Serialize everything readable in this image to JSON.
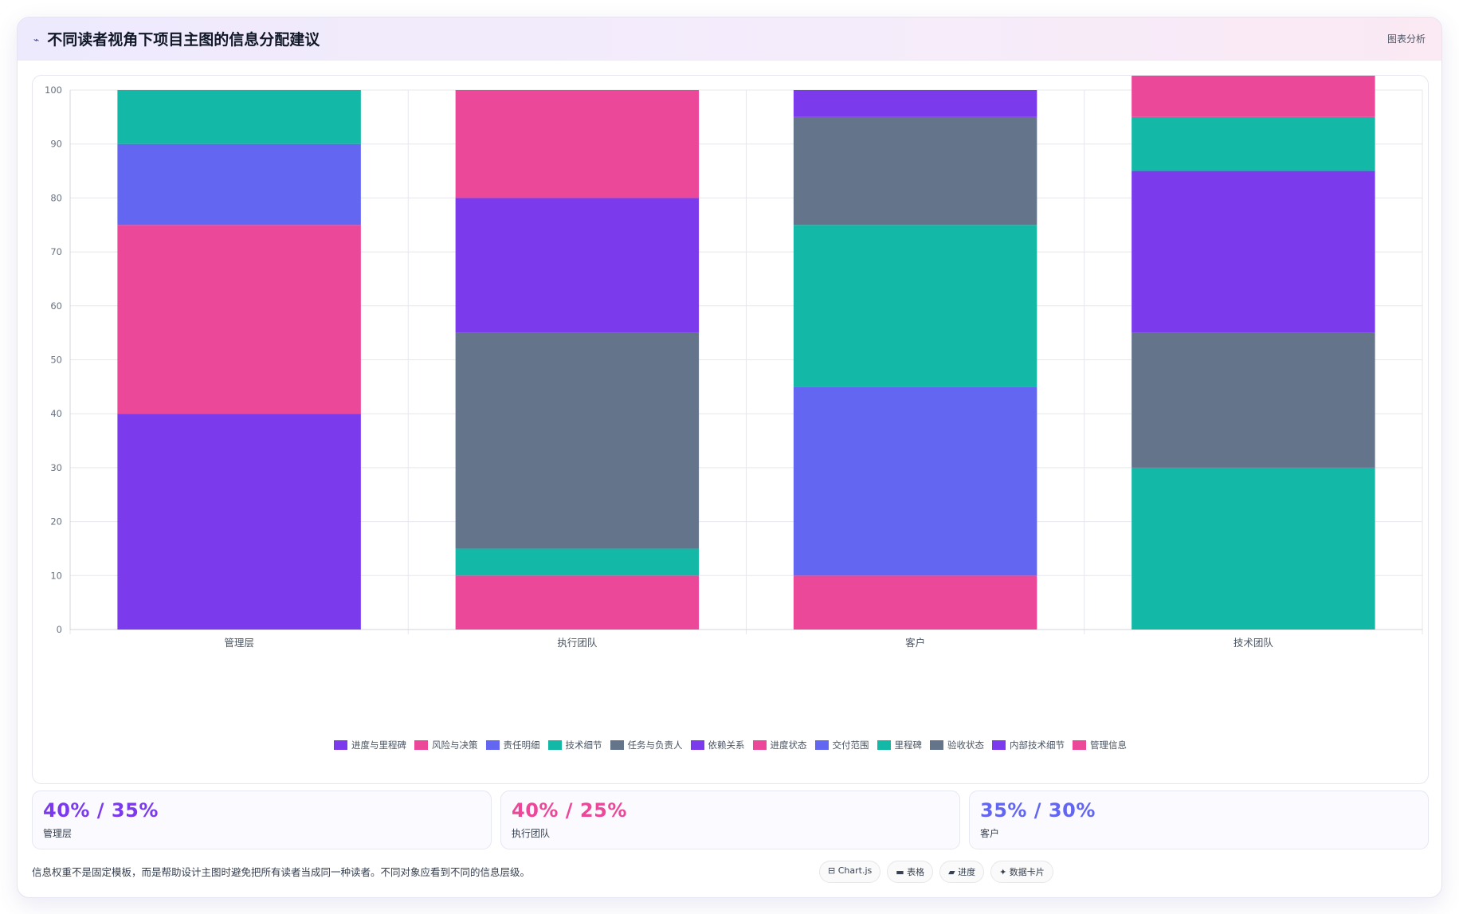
{
  "header": {
    "icon": "chart-line-icon",
    "title": "不同读者视角下项目主图的信息分配建议",
    "tag": "图表分析"
  },
  "colors": {
    "purple": "#7c3aed",
    "pink": "#ec4899",
    "indigo": "#6366f1",
    "teal": "#14b8a6",
    "slate": "#64748b"
  },
  "chart_data": {
    "type": "bar",
    "stacked": true,
    "categories": [
      "管理层",
      "执行团队",
      "客户",
      "技术团队"
    ],
    "ylim": [
      0,
      100
    ],
    "yticks": [
      0,
      10,
      20,
      30,
      40,
      50,
      60,
      70,
      80,
      90,
      100
    ],
    "grid": true,
    "legend_position": "bottom",
    "series": [
      {
        "name": "进度与里程碑",
        "color": "#7c3aed",
        "values": [
          40,
          0,
          0,
          0
        ]
      },
      {
        "name": "风险与决策",
        "color": "#ec4899",
        "values": [
          35,
          0,
          0,
          0
        ]
      },
      {
        "name": "责任明细",
        "color": "#6366f1",
        "values": [
          15,
          0,
          0,
          0
        ]
      },
      {
        "name": "技术细节",
        "color": "#14b8a6",
        "values": [
          10,
          0,
          0,
          0
        ]
      },
      {
        "name": "任务与负责人",
        "color": "#64748b",
        "values": [
          0,
          0,
          0,
          0
        ]
      },
      {
        "name": "依赖关系",
        "color": "#7c3aed",
        "values": [
          0,
          0,
          0,
          0
        ]
      },
      {
        "name": "进度状态",
        "color": "#ec4899",
        "values": [
          0,
          10,
          10,
          0
        ]
      },
      {
        "name": "交付范围",
        "color": "#6366f1",
        "values": [
          0,
          0,
          35,
          0
        ]
      },
      {
        "name": "里程碑",
        "color": "#14b8a6",
        "values": [
          0,
          5,
          30,
          30
        ]
      },
      {
        "name": "验收状态",
        "color": "#64748b",
        "values": [
          0,
          40,
          20,
          25
        ]
      },
      {
        "name": "内部技术细节",
        "color": "#7c3aed",
        "values": [
          0,
          25,
          5,
          30
        ]
      },
      {
        "name": "管理信息",
        "color": "#ec4899",
        "values": [
          0,
          20,
          0,
          15
        ]
      }
    ],
    "legend_extra": [
      {
        "name": "技术细节",
        "color": "#14b8a6",
        "values": [
          0,
          0,
          0,
          10
        ]
      },
      {
        "name": "管理信息",
        "color": "#ec4899",
        "values": [
          0,
          0,
          0,
          5
        ]
      }
    ]
  },
  "stats": [
    {
      "value": "40% / 35%",
      "label": "管理层",
      "color": "#7c3aed"
    },
    {
      "value": "40% / 25%",
      "label": "执行团队",
      "color": "#ec4899"
    },
    {
      "value": "35% / 30%",
      "label": "客户",
      "color": "#6366f1"
    }
  ],
  "footer": {
    "note": "信息权重不是固定模板，而是帮助设计主图时避免把所有读者当成同一种读者。不同对象应看到不同的信息层级。",
    "chips": [
      "⊟ Chart.js",
      "▬ 表格",
      "▰ 进度",
      "✦ 数据卡片"
    ]
  }
}
